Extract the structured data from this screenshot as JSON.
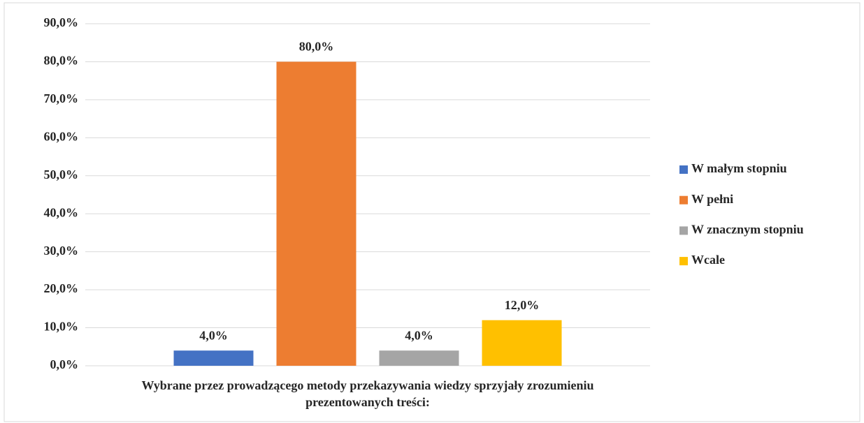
{
  "chart_data": {
    "type": "bar",
    "categories": [
      "Wybrane przez prowadzącego metody przekazywania wiedzy sprzyjały zrozumieniu prezentowanych treści:"
    ],
    "series": [
      {
        "name": "W małym stopniu",
        "color": "#4472c4",
        "values": [
          4
        ],
        "value_labels": [
          "4,0%"
        ]
      },
      {
        "name": "W pełni",
        "color": "#ed7d31",
        "values": [
          80
        ],
        "value_labels": [
          "80,0%"
        ]
      },
      {
        "name": "W znacznym stopniu",
        "color": "#a5a5a5",
        "values": [
          4
        ],
        "value_labels": [
          "4,0%"
        ]
      },
      {
        "name": "Wcale",
        "color": "#ffc000",
        "values": [
          12
        ],
        "value_labels": [
          "12,0%"
        ]
      }
    ],
    "ylim": [
      0,
      90
    ],
    "yticks": [
      {
        "value": 0,
        "label": "0,0%"
      },
      {
        "value": 10,
        "label": "10,0%"
      },
      {
        "value": 20,
        "label": "20,0%"
      },
      {
        "value": 30,
        "label": "30,0%"
      },
      {
        "value": 40,
        "label": "40,0%"
      },
      {
        "value": 50,
        "label": "50,0%"
      },
      {
        "value": 60,
        "label": "60,0%"
      },
      {
        "value": 70,
        "label": "70,0%"
      },
      {
        "value": 80,
        "label": "80,0%"
      },
      {
        "value": 90,
        "label": "90,0%"
      }
    ],
    "grid": true,
    "legend": "right"
  }
}
